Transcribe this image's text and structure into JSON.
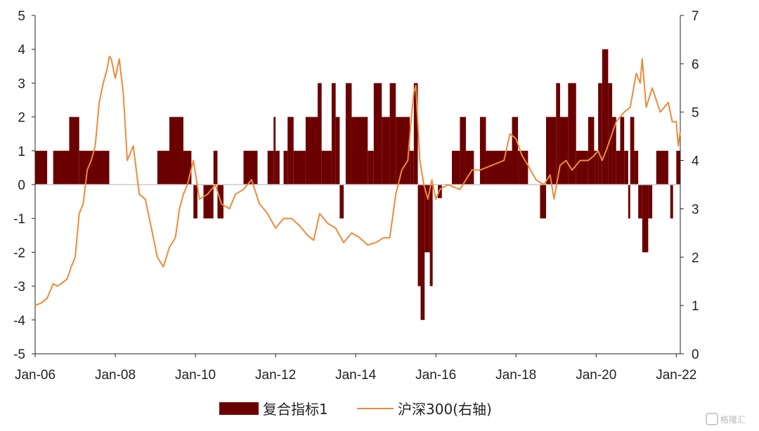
{
  "chart_data": {
    "type": "bar+line",
    "title": "",
    "x_ticks": [
      "Jan-06",
      "Jan-08",
      "Jan-10",
      "Jan-12",
      "Jan-14",
      "Jan-16",
      "Jan-18",
      "Jan-20",
      "Jan-22"
    ],
    "x_range": [
      2006.0,
      2022.1
    ],
    "y_left": {
      "range": [
        -5,
        5
      ],
      "ticks": [
        "5",
        "4",
        "3",
        "2",
        "1",
        "0",
        "-1",
        "-2",
        "-3",
        "-4",
        "-5"
      ]
    },
    "y_right": {
      "range": [
        0,
        7
      ],
      "ticks": [
        "7",
        "6",
        "5",
        "4",
        "3",
        "2",
        "1",
        "0"
      ]
    },
    "grid": false,
    "legend_position": "bottom",
    "colors": {
      "bars": "#6b0000",
      "line": "#ee8a3a",
      "zero_line": "#cccccc",
      "axis": "#222222"
    },
    "series": [
      {
        "name": "复合指标1",
        "type": "bar",
        "axis": "left",
        "segments": [
          {
            "start": 2006.0,
            "end": 2006.3,
            "value": 1
          },
          {
            "start": 2006.45,
            "end": 2006.85,
            "value": 1
          },
          {
            "start": 2006.85,
            "end": 2007.1,
            "value": 2
          },
          {
            "start": 2007.1,
            "end": 2007.85,
            "value": 1
          },
          {
            "start": 2009.05,
            "end": 2009.35,
            "value": 1
          },
          {
            "start": 2009.35,
            "end": 2009.7,
            "value": 2
          },
          {
            "start": 2009.7,
            "end": 2009.9,
            "value": 1
          },
          {
            "start": 2009.95,
            "end": 2010.05,
            "value": -1
          },
          {
            "start": 2010.2,
            "end": 2010.45,
            "value": -1
          },
          {
            "start": 2010.45,
            "end": 2010.55,
            "value": 1
          },
          {
            "start": 2010.55,
            "end": 2010.7,
            "value": -1
          },
          {
            "start": 2011.2,
            "end": 2011.55,
            "value": 1
          },
          {
            "start": 2011.8,
            "end": 2011.95,
            "value": 1
          },
          {
            "start": 2011.95,
            "end": 2012.0,
            "value": 2
          },
          {
            "start": 2012.0,
            "end": 2012.1,
            "value": 1
          },
          {
            "start": 2012.2,
            "end": 2012.3,
            "value": 1
          },
          {
            "start": 2012.3,
            "end": 2012.45,
            "value": 2
          },
          {
            "start": 2012.45,
            "end": 2012.75,
            "value": 1
          },
          {
            "start": 2012.75,
            "end": 2013.05,
            "value": 2
          },
          {
            "start": 2013.05,
            "end": 2013.15,
            "value": 3
          },
          {
            "start": 2013.15,
            "end": 2013.4,
            "value": 1
          },
          {
            "start": 2013.4,
            "end": 2013.5,
            "value": 3
          },
          {
            "start": 2013.5,
            "end": 2013.6,
            "value": 2
          },
          {
            "start": 2013.6,
            "end": 2013.7,
            "value": -1
          },
          {
            "start": 2013.75,
            "end": 2013.9,
            "value": 3
          },
          {
            "start": 2013.9,
            "end": 2014.3,
            "value": 2
          },
          {
            "start": 2014.3,
            "end": 2014.45,
            "value": 1
          },
          {
            "start": 2014.45,
            "end": 2014.65,
            "value": 3
          },
          {
            "start": 2014.65,
            "end": 2014.85,
            "value": 2
          },
          {
            "start": 2014.85,
            "end": 2015.0,
            "value": 3
          },
          {
            "start": 2015.0,
            "end": 2015.35,
            "value": 2
          },
          {
            "start": 2015.35,
            "end": 2015.45,
            "value": 1
          },
          {
            "start": 2015.45,
            "end": 2015.55,
            "value": 3
          },
          {
            "start": 2015.55,
            "end": 2015.62,
            "value": -3
          },
          {
            "start": 2015.62,
            "end": 2015.72,
            "value": -4
          },
          {
            "start": 2015.72,
            "end": 2015.85,
            "value": -2
          },
          {
            "start": 2015.85,
            "end": 2015.92,
            "value": -3
          },
          {
            "start": 2016.05,
            "end": 2016.15,
            "value": -0.4
          },
          {
            "start": 2016.4,
            "end": 2016.6,
            "value": 1
          },
          {
            "start": 2016.6,
            "end": 2016.75,
            "value": 2
          },
          {
            "start": 2016.75,
            "end": 2016.95,
            "value": 1
          },
          {
            "start": 2017.1,
            "end": 2017.25,
            "value": 2
          },
          {
            "start": 2017.25,
            "end": 2017.9,
            "value": 1
          },
          {
            "start": 2017.9,
            "end": 2018.05,
            "value": 2
          },
          {
            "start": 2018.05,
            "end": 2018.3,
            "value": 1
          },
          {
            "start": 2018.6,
            "end": 2018.75,
            "value": -1
          },
          {
            "start": 2018.75,
            "end": 2019.0,
            "value": 2
          },
          {
            "start": 2019.0,
            "end": 2019.1,
            "value": 3
          },
          {
            "start": 2019.1,
            "end": 2019.3,
            "value": 2
          },
          {
            "start": 2019.3,
            "end": 2019.5,
            "value": 3
          },
          {
            "start": 2019.5,
            "end": 2019.8,
            "value": 1
          },
          {
            "start": 2019.8,
            "end": 2019.95,
            "value": 2
          },
          {
            "start": 2019.95,
            "end": 2020.05,
            "value": 1
          },
          {
            "start": 2020.05,
            "end": 2020.15,
            "value": 3
          },
          {
            "start": 2020.15,
            "end": 2020.3,
            "value": 4
          },
          {
            "start": 2020.3,
            "end": 2020.4,
            "value": 3
          },
          {
            "start": 2020.4,
            "end": 2020.5,
            "value": 2
          },
          {
            "start": 2020.5,
            "end": 2020.6,
            "value": 1
          },
          {
            "start": 2020.6,
            "end": 2020.7,
            "value": 2
          },
          {
            "start": 2020.7,
            "end": 2020.8,
            "value": 1
          },
          {
            "start": 2020.8,
            "end": 2020.85,
            "value": -1
          },
          {
            "start": 2020.85,
            "end": 2020.95,
            "value": 2
          },
          {
            "start": 2020.95,
            "end": 2021.05,
            "value": 1
          },
          {
            "start": 2021.05,
            "end": 2021.15,
            "value": -1
          },
          {
            "start": 2021.15,
            "end": 2021.3,
            "value": -2
          },
          {
            "start": 2021.3,
            "end": 2021.4,
            "value": -1
          },
          {
            "start": 2021.5,
            "end": 2021.6,
            "value": 1
          },
          {
            "start": 2021.6,
            "end": 2021.8,
            "value": 1
          },
          {
            "start": 2021.85,
            "end": 2021.92,
            "value": -1
          },
          {
            "start": 2022.0,
            "end": 2022.1,
            "value": 1
          }
        ]
      },
      {
        "name": "沪深300(右轴)",
        "type": "line",
        "axis": "right",
        "x": [
          2006.0,
          2006.15,
          2006.3,
          2006.45,
          2006.55,
          2006.65,
          2006.8,
          2006.9,
          2007.0,
          2007.1,
          2007.2,
          2007.3,
          2007.4,
          2007.5,
          2007.6,
          2007.7,
          2007.8,
          2007.85,
          2007.9,
          2008.0,
          2008.1,
          2008.2,
          2008.3,
          2008.45,
          2008.6,
          2008.75,
          2008.9,
          2009.05,
          2009.2,
          2009.35,
          2009.5,
          2009.6,
          2009.7,
          2009.8,
          2009.95,
          2010.1,
          2010.3,
          2010.5,
          2010.65,
          2010.85,
          2011.0,
          2011.2,
          2011.4,
          2011.6,
          2011.8,
          2012.0,
          2012.2,
          2012.4,
          2012.6,
          2012.8,
          2012.95,
          2013.1,
          2013.3,
          2013.5,
          2013.7,
          2013.9,
          2014.1,
          2014.3,
          2014.5,
          2014.7,
          2014.85,
          2015.0,
          2015.15,
          2015.3,
          2015.4,
          2015.45,
          2015.5,
          2015.6,
          2015.7,
          2015.8,
          2015.9,
          2016.0,
          2016.1,
          2016.3,
          2016.6,
          2016.9,
          2017.1,
          2017.4,
          2017.7,
          2017.85,
          2018.0,
          2018.15,
          2018.3,
          2018.5,
          2018.7,
          2018.85,
          2018.95,
          2019.1,
          2019.25,
          2019.4,
          2019.6,
          2019.8,
          2019.95,
          2020.05,
          2020.15,
          2020.25,
          2020.5,
          2020.7,
          2020.85,
          2021.0,
          2021.1,
          2021.15,
          2021.25,
          2021.4,
          2021.6,
          2021.8,
          2021.9,
          2022.0,
          2022.05,
          2022.1
        ],
        "values": [
          1.0,
          1.05,
          1.15,
          1.45,
          1.4,
          1.45,
          1.55,
          1.8,
          2.0,
          2.9,
          3.1,
          3.8,
          4.0,
          4.3,
          5.2,
          5.6,
          5.9,
          6.15,
          6.1,
          5.7,
          6.1,
          5.4,
          4.0,
          4.3,
          3.3,
          3.2,
          2.6,
          2.0,
          1.8,
          2.2,
          2.4,
          3.0,
          3.3,
          3.5,
          4.0,
          3.2,
          3.3,
          3.5,
          3.1,
          3.0,
          3.3,
          3.4,
          3.6,
          3.1,
          2.9,
          2.6,
          2.8,
          2.8,
          2.65,
          2.45,
          2.35,
          2.9,
          2.7,
          2.6,
          2.3,
          2.5,
          2.4,
          2.25,
          2.3,
          2.4,
          2.4,
          3.3,
          3.8,
          4.0,
          5.0,
          5.4,
          5.55,
          4.0,
          3.5,
          3.2,
          3.6,
          3.2,
          3.4,
          3.5,
          3.4,
          3.8,
          3.8,
          3.9,
          4.0,
          4.55,
          4.45,
          4.1,
          3.9,
          3.6,
          3.5,
          3.7,
          3.2,
          3.9,
          4.0,
          3.8,
          4.0,
          4.0,
          4.1,
          4.2,
          4.0,
          4.2,
          4.8,
          5.0,
          5.1,
          5.8,
          5.6,
          6.1,
          5.1,
          5.5,
          5.0,
          5.2,
          4.8,
          4.8,
          4.3,
          4.6
        ]
      }
    ]
  },
  "legend": [
    {
      "label": "复合指标1"
    },
    {
      "label": "沪深300(右轴)"
    }
  ],
  "watermark": {
    "text": "格隆汇"
  }
}
